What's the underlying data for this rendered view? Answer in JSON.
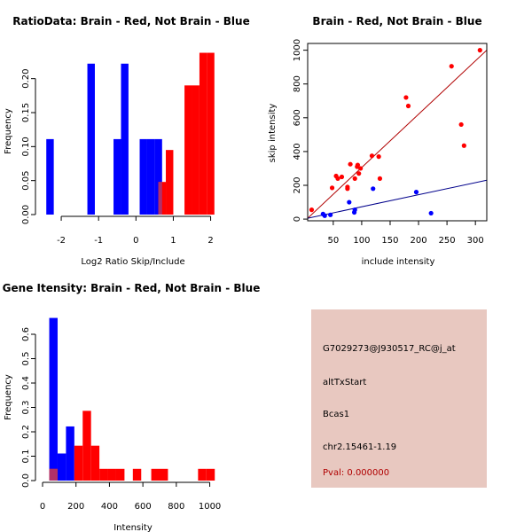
{
  "colors": {
    "brain": "#ff0000",
    "not_brain": "#0000ff",
    "overlap": "#b0306a",
    "info_bg": "#e8c8c0",
    "pval": "#b00000",
    "brain_fit": "#b00000",
    "not_brain_fit": "#00008b"
  },
  "chart_data": [
    {
      "id": "ratio",
      "type": "bar",
      "title": "RatioData: Brain - Red, Not Brain - Blue",
      "xlabel": "Log2 Ratio Skip/Include",
      "ylabel": "Frequency",
      "xlim": [
        -2.5,
        2.2
      ],
      "ylim": [
        0,
        0.24
      ],
      "xticks": [
        -2,
        -1,
        0,
        1,
        2
      ],
      "yticks": [
        0.0,
        0.05,
        0.1,
        0.15,
        0.2
      ],
      "ytick_labels": [
        "0.00",
        "0.05",
        "0.10",
        "0.15",
        "0.20"
      ],
      "series": [
        {
          "name": "Not Brain",
          "color": "blue",
          "bins": [
            {
              "x0": -2.4,
              "x1": -2.2,
              "y": 0.111
            },
            {
              "x0": -1.3,
              "x1": -1.1,
              "y": 0.222
            },
            {
              "x0": -0.6,
              "x1": -0.4,
              "y": 0.111
            },
            {
              "x0": -0.4,
              "x1": -0.2,
              "y": 0.222
            },
            {
              "x0": 0.1,
              "x1": 0.3,
              "y": 0.111
            },
            {
              "x0": 0.3,
              "x1": 0.5,
              "y": 0.111
            },
            {
              "x0": 0.5,
              "x1": 0.7,
              "y": 0.111
            }
          ]
        },
        {
          "name": "Brain",
          "color": "red",
          "bins": [
            {
              "x0": 0.6,
              "x1": 0.8,
              "y": 0.048
            },
            {
              "x0": 0.8,
              "x1": 1.0,
              "y": 0.095
            },
            {
              "x0": 1.3,
              "x1": 1.5,
              "y": 0.19
            },
            {
              "x0": 1.5,
              "x1": 1.7,
              "y": 0.19
            },
            {
              "x0": 1.7,
              "x1": 1.9,
              "y": 0.238
            },
            {
              "x0": 1.9,
              "x1": 2.1,
              "y": 0.238
            }
          ]
        }
      ]
    },
    {
      "id": "scatter",
      "type": "scatter",
      "title": "Brain - Red, Not Brain - Blue",
      "xlabel": "include intensity",
      "ylabel": "skip intensity",
      "xlim": [
        5,
        320
      ],
      "ylim": [
        -10,
        1040
      ],
      "xticks": [
        50,
        100,
        150,
        200,
        250,
        300
      ],
      "yticks": [
        0,
        200,
        400,
        600,
        800,
        1000
      ],
      "series": [
        {
          "name": "Brain",
          "color": "red",
          "points": [
            [
              12,
              55
            ],
            [
              48,
              185
            ],
            [
              55,
              255
            ],
            [
              58,
              240
            ],
            [
              65,
              250
            ],
            [
              75,
              190
            ],
            [
              75,
              180
            ],
            [
              80,
              325
            ],
            [
              88,
              240
            ],
            [
              92,
              310
            ],
            [
              93,
              320
            ],
            [
              95,
              270
            ],
            [
              98,
              300
            ],
            [
              118,
              375
            ],
            [
              130,
              370
            ],
            [
              132,
              240
            ],
            [
              178,
              720
            ],
            [
              182,
              670
            ],
            [
              258,
              905
            ],
            [
              275,
              560
            ],
            [
              280,
              435
            ],
            [
              308,
              1000
            ]
          ],
          "fit": [
            [
              5,
              5
            ],
            [
              320,
              1000
            ]
          ]
        },
        {
          "name": "Not Brain",
          "color": "blue",
          "points": [
            [
              32,
              30
            ],
            [
              35,
              20
            ],
            [
              45,
              25
            ],
            [
              78,
              100
            ],
            [
              87,
              40
            ],
            [
              88,
              55
            ],
            [
              120,
              180
            ],
            [
              196,
              160
            ],
            [
              222,
              35
            ]
          ],
          "fit": [
            [
              5,
              5
            ],
            [
              320,
              230
            ]
          ]
        }
      ]
    },
    {
      "id": "gene",
      "type": "bar",
      "title": "Gene Itensity: Brain - Red, Not Brain - Blue",
      "xlabel": "Intensity",
      "ylabel": "Frequency",
      "xlim": [
        0,
        1050
      ],
      "ylim": [
        0,
        0.68
      ],
      "xticks": [
        0,
        200,
        400,
        600,
        800,
        1000
      ],
      "yticks": [
        0.0,
        0.1,
        0.2,
        0.3,
        0.4,
        0.5,
        0.6
      ],
      "ytick_labels": [
        "0.0",
        "0.1",
        "0.2",
        "0.3",
        "0.4",
        "0.5",
        "0.6"
      ],
      "series": [
        {
          "name": "Not Brain",
          "color": "blue",
          "bins": [
            {
              "x0": 40,
              "x1": 90,
              "y": 0.667
            },
            {
              "x0": 90,
              "x1": 140,
              "y": 0.111
            },
            {
              "x0": 140,
              "x1": 190,
              "y": 0.222
            }
          ]
        },
        {
          "name": "Brain",
          "color": "red",
          "bins": [
            {
              "x0": 40,
              "x1": 90,
              "y": 0.048
            },
            {
              "x0": 190,
              "x1": 240,
              "y": 0.143
            },
            {
              "x0": 240,
              "x1": 290,
              "y": 0.286
            },
            {
              "x0": 290,
              "x1": 340,
              "y": 0.143
            },
            {
              "x0": 340,
              "x1": 390,
              "y": 0.048
            },
            {
              "x0": 390,
              "x1": 440,
              "y": 0.048
            },
            {
              "x0": 440,
              "x1": 490,
              "y": 0.048
            },
            {
              "x0": 540,
              "x1": 590,
              "y": 0.048
            },
            {
              "x0": 650,
              "x1": 700,
              "y": 0.048
            },
            {
              "x0": 700,
              "x1": 750,
              "y": 0.048
            },
            {
              "x0": 930,
              "x1": 980,
              "y": 0.048
            },
            {
              "x0": 980,
              "x1": 1030,
              "y": 0.048
            }
          ]
        }
      ]
    }
  ],
  "info_panel": {
    "probe_id": "G7029273@J930517_RC@j_at",
    "event_type": "altTxStart",
    "gene": "Bcas1",
    "location": "chr2.15461-1.19",
    "pval": "Pval: 0.000000"
  }
}
